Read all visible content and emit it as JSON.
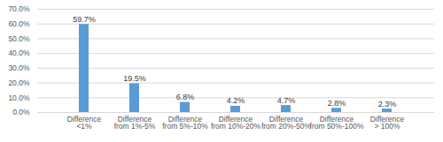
{
  "chart_data": {
    "type": "bar",
    "categories": [
      "Difference <1%",
      "Difference from 1%-5%",
      "Difference from 5%-10%",
      "Difference from 10%-20%",
      "Difference from 20%-50%",
      "Difference from 50%-100%",
      "Difference > 100%"
    ],
    "values": [
      59.7,
      19.5,
      6.8,
      4.2,
      4.7,
      2.8,
      2.3
    ],
    "value_labels": [
      "59.7%",
      "19.5%",
      "6.8%",
      "4.2%",
      "4.7%",
      "2.8%",
      "2.3%"
    ],
    "color": "#5b9bd5",
    "ylim": [
      0,
      70
    ],
    "yticks": [
      {
        "value": 0,
        "label": "0.0%"
      },
      {
        "value": 10,
        "label": "10.0%"
      },
      {
        "value": 20,
        "label": "20.0%"
      },
      {
        "value": 30,
        "label": "30.0%"
      },
      {
        "value": 40,
        "label": "40.0%"
      },
      {
        "value": 50,
        "label": "50.0%"
      },
      {
        "value": 60,
        "label": "60.0%"
      },
      {
        "value": 70,
        "label": "70.0%"
      }
    ],
    "grid": true,
    "data_labels": true
  }
}
